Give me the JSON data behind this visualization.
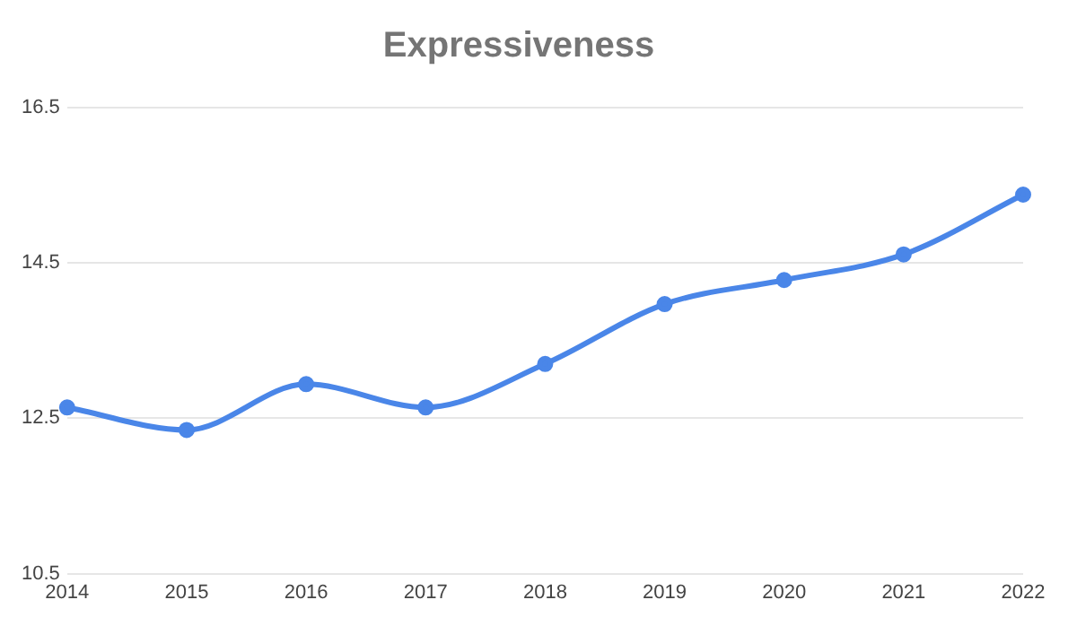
{
  "chart_data": {
    "type": "line",
    "title": "Expressiveness",
    "categories": [
      "2014",
      "2015",
      "2016",
      "2017",
      "2018",
      "2019",
      "2020",
      "2021",
      "2022"
    ],
    "series": [
      {
        "color": "#4a86e8",
        "values": [
          12.64,
          12.35,
          12.94,
          12.64,
          13.2,
          13.97,
          14.28,
          14.61,
          15.38
        ]
      }
    ],
    "ylim": [
      10.5,
      16.5
    ],
    "yticks": [
      10.5,
      12.5,
      14.5,
      16.5
    ],
    "grid": "y",
    "marker": "circle",
    "line_style": "solid"
  }
}
